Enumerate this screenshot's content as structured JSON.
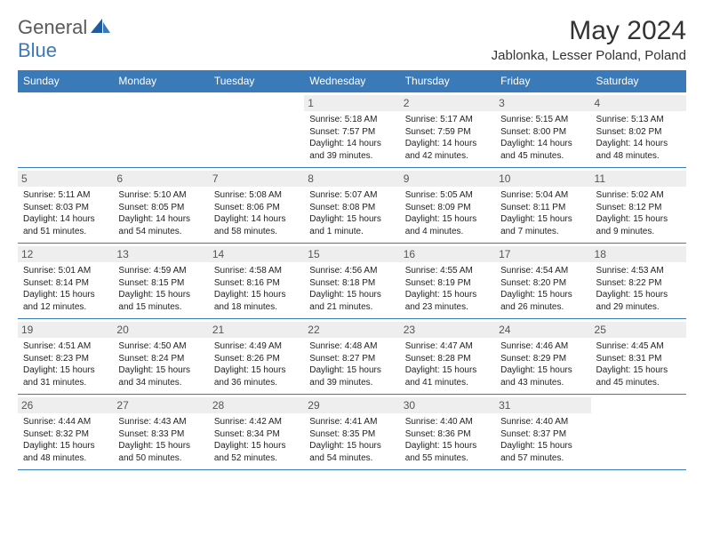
{
  "logo": {
    "text1": "General",
    "text2": "Blue"
  },
  "title": "May 2024",
  "location": "Jablonka, Lesser Poland, Poland",
  "colors": {
    "accent": "#3b7ab8",
    "header_text": "#ffffff",
    "day_bg": "#eeeeee",
    "border": "#3b7ab8"
  },
  "weekdays": [
    "Sunday",
    "Monday",
    "Tuesday",
    "Wednesday",
    "Thursday",
    "Friday",
    "Saturday"
  ],
  "weeks": [
    [
      null,
      null,
      null,
      {
        "n": "1",
        "sr": "Sunrise: 5:18 AM",
        "ss": "Sunset: 7:57 PM",
        "d1": "Daylight: 14 hours",
        "d2": "and 39 minutes."
      },
      {
        "n": "2",
        "sr": "Sunrise: 5:17 AM",
        "ss": "Sunset: 7:59 PM",
        "d1": "Daylight: 14 hours",
        "d2": "and 42 minutes."
      },
      {
        "n": "3",
        "sr": "Sunrise: 5:15 AM",
        "ss": "Sunset: 8:00 PM",
        "d1": "Daylight: 14 hours",
        "d2": "and 45 minutes."
      },
      {
        "n": "4",
        "sr": "Sunrise: 5:13 AM",
        "ss": "Sunset: 8:02 PM",
        "d1": "Daylight: 14 hours",
        "d2": "and 48 minutes."
      }
    ],
    [
      {
        "n": "5",
        "sr": "Sunrise: 5:11 AM",
        "ss": "Sunset: 8:03 PM",
        "d1": "Daylight: 14 hours",
        "d2": "and 51 minutes."
      },
      {
        "n": "6",
        "sr": "Sunrise: 5:10 AM",
        "ss": "Sunset: 8:05 PM",
        "d1": "Daylight: 14 hours",
        "d2": "and 54 minutes."
      },
      {
        "n": "7",
        "sr": "Sunrise: 5:08 AM",
        "ss": "Sunset: 8:06 PM",
        "d1": "Daylight: 14 hours",
        "d2": "and 58 minutes."
      },
      {
        "n": "8",
        "sr": "Sunrise: 5:07 AM",
        "ss": "Sunset: 8:08 PM",
        "d1": "Daylight: 15 hours",
        "d2": "and 1 minute."
      },
      {
        "n": "9",
        "sr": "Sunrise: 5:05 AM",
        "ss": "Sunset: 8:09 PM",
        "d1": "Daylight: 15 hours",
        "d2": "and 4 minutes."
      },
      {
        "n": "10",
        "sr": "Sunrise: 5:04 AM",
        "ss": "Sunset: 8:11 PM",
        "d1": "Daylight: 15 hours",
        "d2": "and 7 minutes."
      },
      {
        "n": "11",
        "sr": "Sunrise: 5:02 AM",
        "ss": "Sunset: 8:12 PM",
        "d1": "Daylight: 15 hours",
        "d2": "and 9 minutes."
      }
    ],
    [
      {
        "n": "12",
        "sr": "Sunrise: 5:01 AM",
        "ss": "Sunset: 8:14 PM",
        "d1": "Daylight: 15 hours",
        "d2": "and 12 minutes."
      },
      {
        "n": "13",
        "sr": "Sunrise: 4:59 AM",
        "ss": "Sunset: 8:15 PM",
        "d1": "Daylight: 15 hours",
        "d2": "and 15 minutes."
      },
      {
        "n": "14",
        "sr": "Sunrise: 4:58 AM",
        "ss": "Sunset: 8:16 PM",
        "d1": "Daylight: 15 hours",
        "d2": "and 18 minutes."
      },
      {
        "n": "15",
        "sr": "Sunrise: 4:56 AM",
        "ss": "Sunset: 8:18 PM",
        "d1": "Daylight: 15 hours",
        "d2": "and 21 minutes."
      },
      {
        "n": "16",
        "sr": "Sunrise: 4:55 AM",
        "ss": "Sunset: 8:19 PM",
        "d1": "Daylight: 15 hours",
        "d2": "and 23 minutes."
      },
      {
        "n": "17",
        "sr": "Sunrise: 4:54 AM",
        "ss": "Sunset: 8:20 PM",
        "d1": "Daylight: 15 hours",
        "d2": "and 26 minutes."
      },
      {
        "n": "18",
        "sr": "Sunrise: 4:53 AM",
        "ss": "Sunset: 8:22 PM",
        "d1": "Daylight: 15 hours",
        "d2": "and 29 minutes."
      }
    ],
    [
      {
        "n": "19",
        "sr": "Sunrise: 4:51 AM",
        "ss": "Sunset: 8:23 PM",
        "d1": "Daylight: 15 hours",
        "d2": "and 31 minutes."
      },
      {
        "n": "20",
        "sr": "Sunrise: 4:50 AM",
        "ss": "Sunset: 8:24 PM",
        "d1": "Daylight: 15 hours",
        "d2": "and 34 minutes."
      },
      {
        "n": "21",
        "sr": "Sunrise: 4:49 AM",
        "ss": "Sunset: 8:26 PM",
        "d1": "Daylight: 15 hours",
        "d2": "and 36 minutes."
      },
      {
        "n": "22",
        "sr": "Sunrise: 4:48 AM",
        "ss": "Sunset: 8:27 PM",
        "d1": "Daylight: 15 hours",
        "d2": "and 39 minutes."
      },
      {
        "n": "23",
        "sr": "Sunrise: 4:47 AM",
        "ss": "Sunset: 8:28 PM",
        "d1": "Daylight: 15 hours",
        "d2": "and 41 minutes."
      },
      {
        "n": "24",
        "sr": "Sunrise: 4:46 AM",
        "ss": "Sunset: 8:29 PM",
        "d1": "Daylight: 15 hours",
        "d2": "and 43 minutes."
      },
      {
        "n": "25",
        "sr": "Sunrise: 4:45 AM",
        "ss": "Sunset: 8:31 PM",
        "d1": "Daylight: 15 hours",
        "d2": "and 45 minutes."
      }
    ],
    [
      {
        "n": "26",
        "sr": "Sunrise: 4:44 AM",
        "ss": "Sunset: 8:32 PM",
        "d1": "Daylight: 15 hours",
        "d2": "and 48 minutes."
      },
      {
        "n": "27",
        "sr": "Sunrise: 4:43 AM",
        "ss": "Sunset: 8:33 PM",
        "d1": "Daylight: 15 hours",
        "d2": "and 50 minutes."
      },
      {
        "n": "28",
        "sr": "Sunrise: 4:42 AM",
        "ss": "Sunset: 8:34 PM",
        "d1": "Daylight: 15 hours",
        "d2": "and 52 minutes."
      },
      {
        "n": "29",
        "sr": "Sunrise: 4:41 AM",
        "ss": "Sunset: 8:35 PM",
        "d1": "Daylight: 15 hours",
        "d2": "and 54 minutes."
      },
      {
        "n": "30",
        "sr": "Sunrise: 4:40 AM",
        "ss": "Sunset: 8:36 PM",
        "d1": "Daylight: 15 hours",
        "d2": "and 55 minutes."
      },
      {
        "n": "31",
        "sr": "Sunrise: 4:40 AM",
        "ss": "Sunset: 8:37 PM",
        "d1": "Daylight: 15 hours",
        "d2": "and 57 minutes."
      },
      null
    ]
  ]
}
